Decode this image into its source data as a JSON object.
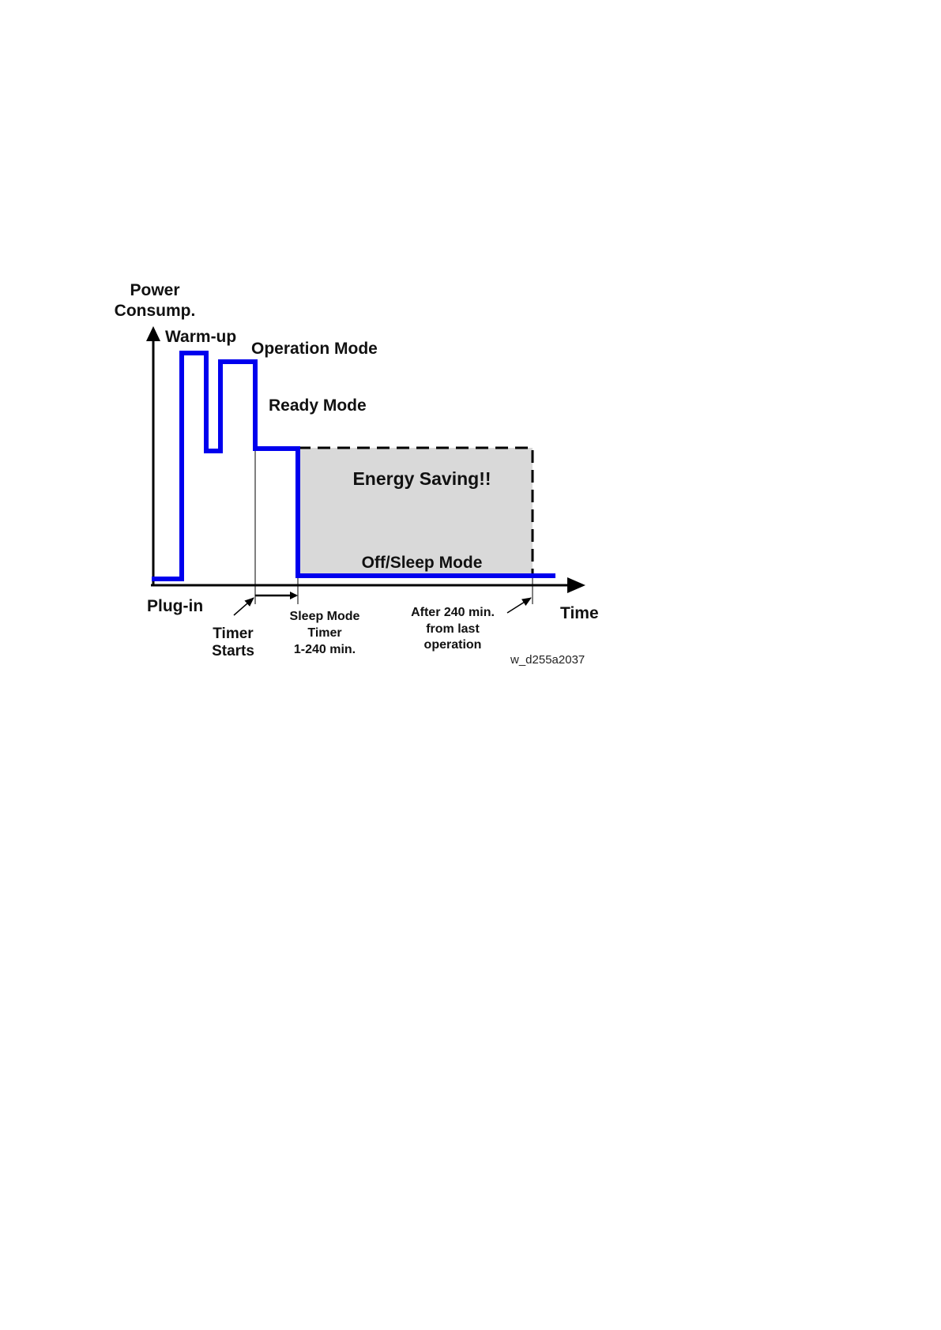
{
  "colors": {
    "background": "#ffffff",
    "power_line": "#0000ee",
    "axis": "#000000",
    "saving_fill": "#d9d9d9",
    "saving_border": "#000000",
    "text": "#111111"
  },
  "axes": {
    "y_label_line1": "Power",
    "y_label_line2": "Consump.",
    "x_label": "Time",
    "origin_label": "Plug-in"
  },
  "modes": {
    "warm_up": "Warm-up",
    "operation": "Operation Mode",
    "ready": "Ready Mode",
    "energy_saving": "Energy Saving!!",
    "off_sleep": "Off/Sleep Mode"
  },
  "annotations": {
    "timer_starts_line1": "Timer",
    "timer_starts_line2": "Starts",
    "sleep_timer_line1": "Sleep Mode",
    "sleep_timer_line2": "Timer",
    "sleep_timer_line3": "1-240 min.",
    "after_line1": "After 240 min.",
    "after_line2": "from last",
    "after_line3": "operation"
  },
  "figure_code": "w_d255a2037"
}
